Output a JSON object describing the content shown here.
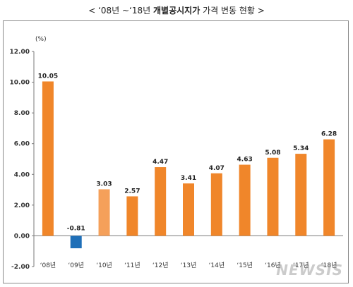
{
  "title": {
    "prefix": "< ‘08년 ~‘18년 ",
    "bold": "개별공시지가",
    "suffix": " 가격 변동 현황 >"
  },
  "watermark": "NEWSIS",
  "chart_data": {
    "type": "bar",
    "title": "< ‘08년 ~‘18년 개별공시지가 가격 변동 현황 >",
    "unit_label": "(%)",
    "categories": [
      "‘08년",
      "‘09년",
      "‘10년",
      "‘11년",
      "‘12년",
      "‘13년",
      "‘14년",
      "‘15년",
      "‘16년",
      "‘17년",
      "‘18년"
    ],
    "values": [
      10.05,
      -0.81,
      3.03,
      2.57,
      4.47,
      3.41,
      4.07,
      4.63,
      5.08,
      5.34,
      6.28
    ],
    "value_labels": [
      "10.05",
      "-0.81",
      "3.03",
      "2.57",
      "4.47",
      "3.41",
      "4.07",
      "4.63",
      "5.08",
      "5.34",
      "6.28"
    ],
    "ylim": [
      -2,
      12
    ],
    "yticks": [
      -2,
      0,
      2,
      4,
      6,
      8,
      10,
      12
    ],
    "ytick_labels": [
      "-2.00",
      "0.00",
      "2.00",
      "4.00",
      "6.00",
      "8.00",
      "10.00",
      "12.00"
    ],
    "grid": false,
    "colors": {
      "default": "#f0862a",
      "negative": "#1f6fb8",
      "highlight": "#f5a05a"
    },
    "bar_colors": [
      "#f0862a",
      "#1f6fb8",
      "#f5a05a",
      "#f0862a",
      "#f0862a",
      "#f0862a",
      "#f0862a",
      "#f0862a",
      "#f0862a",
      "#f0862a",
      "#f0862a"
    ]
  }
}
